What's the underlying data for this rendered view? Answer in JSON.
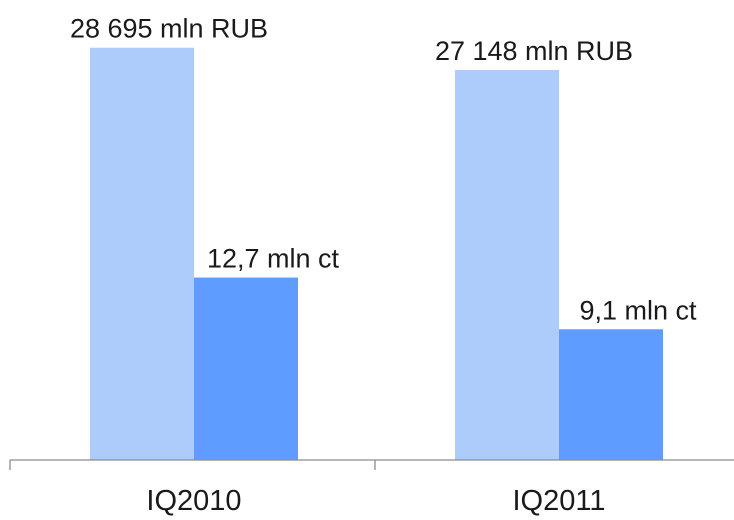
{
  "chart_data": {
    "type": "bar",
    "categories": [
      "IQ2010",
      "IQ2011"
    ],
    "series": [
      {
        "name": "RUB",
        "color": "#adcbfb",
        "values": [
          28695,
          27148
        ],
        "value_labels": [
          "28 695 mln RUB",
          "27 148 mln RUB"
        ]
      },
      {
        "name": "ct",
        "color": "#5f9cff",
        "axis": "y2",
        "values": [
          12.7,
          9.1
        ],
        "value_labels": [
          "12,7 mln ct",
          "9,1 mln ct"
        ]
      }
    ],
    "ylim": [
      0,
      30000
    ],
    "y2lim": [
      0,
      30
    ]
  }
}
